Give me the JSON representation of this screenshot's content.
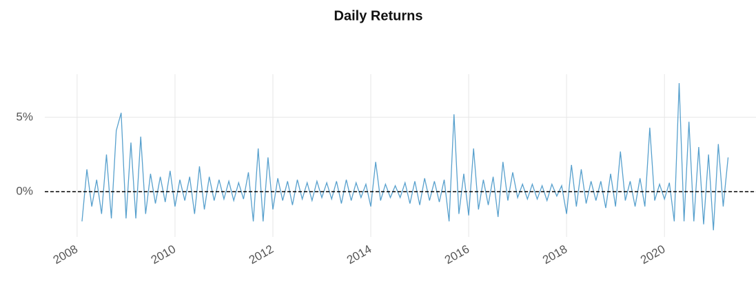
{
  "chart_data": {
    "type": "line",
    "title": "Daily Returns",
    "x": [
      2008.1,
      2008.2,
      2008.3,
      2008.4,
      2008.5,
      2008.6,
      2008.7,
      2008.8,
      2008.9,
      2009.0,
      2009.1,
      2009.2,
      2009.3,
      2009.4,
      2009.5,
      2009.6,
      2009.7,
      2009.8,
      2009.9,
      2010.0,
      2010.1,
      2010.2,
      2010.3,
      2010.4,
      2010.5,
      2010.6,
      2010.7,
      2010.8,
      2010.9,
      2011.0,
      2011.1,
      2011.2,
      2011.3,
      2011.4,
      2011.5,
      2011.6,
      2011.7,
      2011.8,
      2011.9,
      2012.0,
      2012.1,
      2012.2,
      2012.3,
      2012.4,
      2012.5,
      2012.6,
      2012.7,
      2012.8,
      2012.9,
      2013.0,
      2013.1,
      2013.2,
      2013.3,
      2013.4,
      2013.5,
      2013.6,
      2013.7,
      2013.8,
      2013.9,
      2014.0,
      2014.1,
      2014.2,
      2014.3,
      2014.4,
      2014.5,
      2014.6,
      2014.7,
      2014.8,
      2014.9,
      2015.0,
      2015.1,
      2015.2,
      2015.3,
      2015.4,
      2015.5,
      2015.6,
      2015.7,
      2015.8,
      2015.9,
      2016.0,
      2016.1,
      2016.2,
      2016.3,
      2016.4,
      2016.5,
      2016.6,
      2016.7,
      2016.8,
      2016.9,
      2017.0,
      2017.1,
      2017.2,
      2017.3,
      2017.4,
      2017.5,
      2017.6,
      2017.7,
      2017.8,
      2017.9,
      2018.0,
      2018.1,
      2018.2,
      2018.3,
      2018.4,
      2018.5,
      2018.6,
      2018.7,
      2018.8,
      2018.9,
      2019.0,
      2019.1,
      2019.2,
      2019.3,
      2019.4,
      2019.5,
      2019.6,
      2019.7,
      2019.8,
      2019.9,
      2020.0,
      2020.1,
      2020.2,
      2020.3,
      2020.4,
      2020.5,
      2020.6,
      2020.7,
      2020.8,
      2020.9,
      2021.0,
      2021.1,
      2021.2,
      2021.3
    ],
    "series": [
      {
        "color": "#3a8fc4",
        "values": [
          -2.0,
          1.5,
          -1.0,
          0.8,
          -1.5,
          2.5,
          -1.8,
          4.1,
          5.3,
          -1.8,
          3.3,
          -1.8,
          3.7,
          -1.5,
          1.2,
          -0.8,
          1.0,
          -0.7,
          1.4,
          -1.0,
          0.8,
          -0.6,
          1.0,
          -1.5,
          1.7,
          -1.2,
          1.0,
          -0.6,
          0.8,
          -0.5,
          0.7,
          -0.6,
          0.6,
          -0.5,
          1.3,
          -2.0,
          2.9,
          -2.0,
          2.3,
          -1.2,
          0.9,
          -0.6,
          0.7,
          -0.9,
          0.8,
          -0.5,
          0.6,
          -0.6,
          0.7,
          -0.4,
          0.6,
          -0.5,
          0.7,
          -0.8,
          0.8,
          -0.6,
          0.6,
          -0.4,
          0.5,
          -1.0,
          2.0,
          -0.6,
          0.5,
          -0.4,
          0.4,
          -0.4,
          0.6,
          -0.8,
          0.7,
          -0.9,
          0.9,
          -0.6,
          0.7,
          -0.7,
          0.8,
          -2.0,
          5.2,
          -1.5,
          1.2,
          -1.6,
          2.9,
          -1.2,
          0.8,
          -0.9,
          1.0,
          -1.7,
          2.0,
          -0.6,
          1.3,
          -0.4,
          0.5,
          -0.5,
          0.5,
          -0.5,
          0.4,
          -0.6,
          0.5,
          -0.3,
          0.4,
          -1.5,
          1.8,
          -1.0,
          1.5,
          -0.8,
          0.7,
          -0.6,
          0.7,
          -1.1,
          1.2,
          -1.0,
          2.7,
          -0.6,
          0.7,
          -1.0,
          0.9,
          -1.0,
          4.3,
          -0.6,
          0.5,
          -0.5,
          0.6,
          -2.0,
          7.3,
          -2.0,
          4.7,
          -2.0,
          3.0,
          -2.2,
          2.5,
          -2.6,
          3.2,
          -1.0,
          2.3
        ]
      }
    ],
    "xlim": [
      2007.34,
      2021.87
    ],
    "xticks": [
      2008,
      2010,
      2012,
      2014,
      2016,
      2018,
      2020
    ],
    "ylim": [
      -3.05,
      7.9
    ],
    "yticks": [
      {
        "value": 0,
        "label": "0%"
      },
      {
        "value": 5,
        "label": "5%"
      }
    ],
    "grid": true,
    "hline": 0
  }
}
